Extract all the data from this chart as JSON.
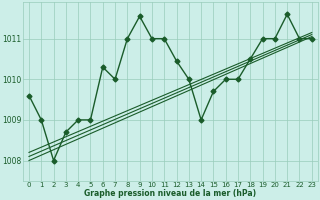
{
  "bg_color": "#cceee8",
  "grid_color": "#99ccbb",
  "line_color": "#1a5c2a",
  "text_color": "#1a5c2a",
  "xlabel": "Graphe pression niveau de la mer (hPa)",
  "xlim": [
    -0.5,
    23.5
  ],
  "ylim": [
    1007.5,
    1011.9
  ],
  "yticks": [
    1008,
    1009,
    1010,
    1011
  ],
  "xticks": [
    0,
    1,
    2,
    3,
    4,
    5,
    6,
    7,
    8,
    9,
    10,
    11,
    12,
    13,
    14,
    15,
    16,
    17,
    18,
    19,
    20,
    21,
    22,
    23
  ],
  "series_main": {
    "x": [
      0,
      1,
      2,
      3,
      4,
      5,
      6,
      7,
      8,
      9,
      10,
      11,
      12,
      13,
      14,
      15,
      16,
      17,
      18,
      19,
      20,
      21,
      22,
      23
    ],
    "y": [
      1009.6,
      1009.0,
      1008.0,
      1008.7,
      1009.0,
      1009.0,
      1010.3,
      1010.0,
      1011.0,
      1011.55,
      1011.0,
      1011.0,
      1010.45,
      1010.0,
      1009.0,
      1009.7,
      1010.0,
      1010.0,
      1010.5,
      1011.0,
      1011.0,
      1011.6,
      1011.0,
      1011.0
    ],
    "marker": "D",
    "markersize": 2.5,
    "linewidth": 1.0
  },
  "series_trend": [
    {
      "x": [
        0,
        23
      ],
      "y": [
        1008.0,
        1011.05
      ],
      "linewidth": 0.8
    },
    {
      "x": [
        0,
        23
      ],
      "y": [
        1008.1,
        1011.1
      ],
      "linewidth": 0.8
    },
    {
      "x": [
        0,
        23
      ],
      "y": [
        1008.2,
        1011.15
      ],
      "linewidth": 0.8
    }
  ]
}
